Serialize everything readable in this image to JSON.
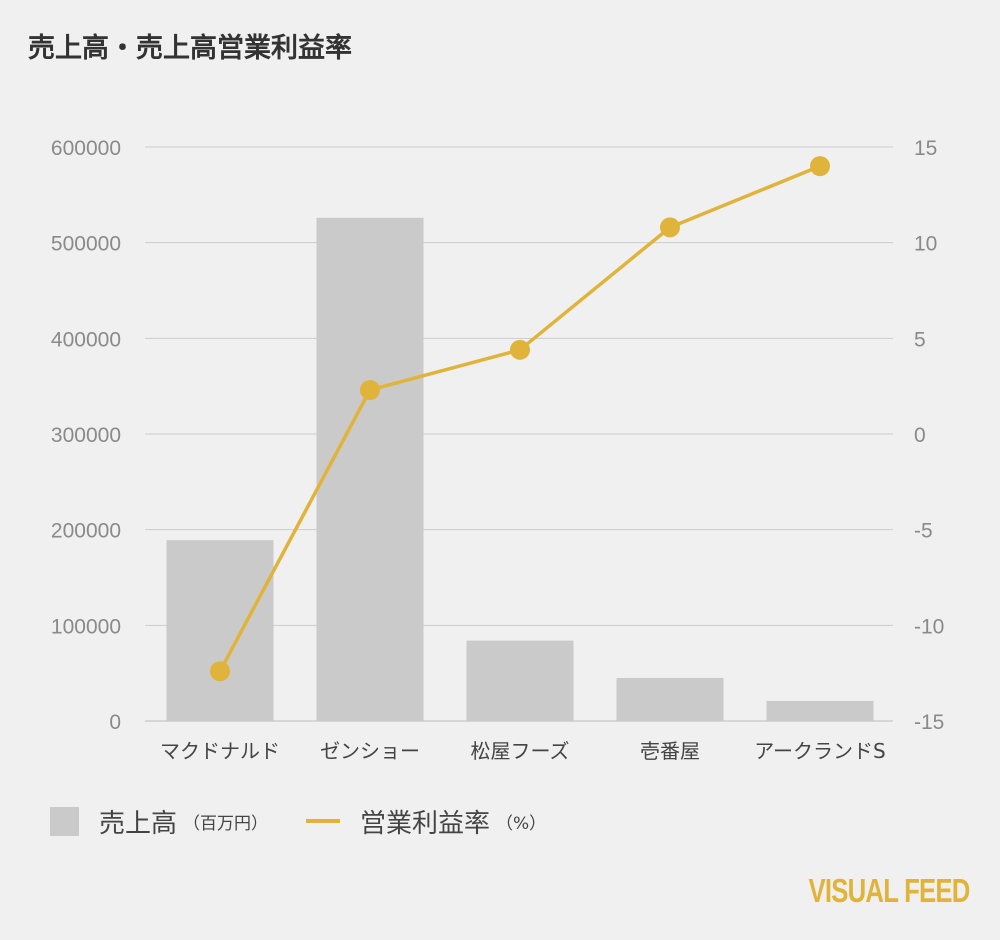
{
  "title": "売上高・売上高営業利益率",
  "legend": {
    "bar_label": "売上高",
    "bar_unit": "（百万円）",
    "line_label": "営業利益率",
    "line_unit": "（%）"
  },
  "brand": "VISUAL FEED",
  "colors": {
    "bar": "#cacaca",
    "line": "#e0b43a",
    "grid": "#cccccc",
    "background": "#f0f0f0"
  },
  "chart_data": {
    "type": "bar",
    "title": "売上高・売上高営業利益率",
    "categories": [
      "マクドナルド",
      "ゼンショー",
      "松屋フーズ",
      "壱番屋",
      "アークランドS"
    ],
    "series": [
      {
        "name": "売上高",
        "type": "bar",
        "axis": "left",
        "values": [
          189000,
          526000,
          84000,
          45000,
          21000
        ]
      },
      {
        "name": "営業利益率",
        "type": "line",
        "axis": "right",
        "values": [
          -12.4,
          2.3,
          4.4,
          10.8,
          14.0
        ]
      }
    ],
    "y_left": {
      "min": 0,
      "max": 600000,
      "ticks": [
        0,
        100000,
        200000,
        300000,
        400000,
        500000,
        600000
      ]
    },
    "y_right": {
      "min": -15,
      "max": 15,
      "ticks": [
        -15,
        -10,
        -5,
        0,
        5,
        10,
        15
      ]
    },
    "grid": true,
    "legend_position": "bottom-left"
  }
}
